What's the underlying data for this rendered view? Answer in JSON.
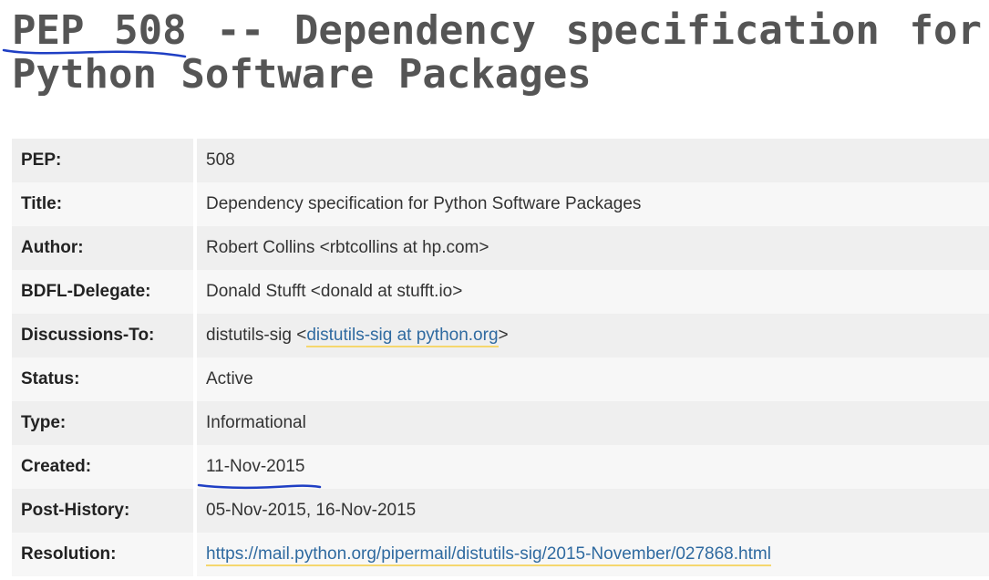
{
  "page": {
    "title_pep": "PEP 508",
    "title_rest": " -- Dependency specification for Python Software Packages"
  },
  "fields": [
    {
      "label": "PEP:",
      "value": "508"
    },
    {
      "label": "Title:",
      "value": "Dependency specification for Python Software Packages"
    },
    {
      "label": "Author:",
      "value": "Robert Collins <rbtcollins at hp.com>"
    },
    {
      "label": "BDFL-Delegate:",
      "value": "Donald Stufft <donald at stufft.io>"
    },
    {
      "label": "Discussions-To:",
      "value_prefix": "distutils-sig <",
      "link": "distutils-sig at python.org",
      "value_suffix": ">"
    },
    {
      "label": "Status:",
      "value": "Active"
    },
    {
      "label": "Type:",
      "value": "Informational"
    },
    {
      "label": "Created:",
      "value": "11-Nov-2015"
    },
    {
      "label": "Post-History:",
      "value": "05-Nov-2015, 16-Nov-2015"
    },
    {
      "label": "Resolution:",
      "link": "https://mail.python.org/pipermail/distutils-sig/2015-November/027868.html"
    }
  ],
  "colors": {
    "title": "#555555",
    "link": "#2f6aa0",
    "link_underline": "#f5d76e",
    "pen_annotation": "#1f3fc4"
  }
}
